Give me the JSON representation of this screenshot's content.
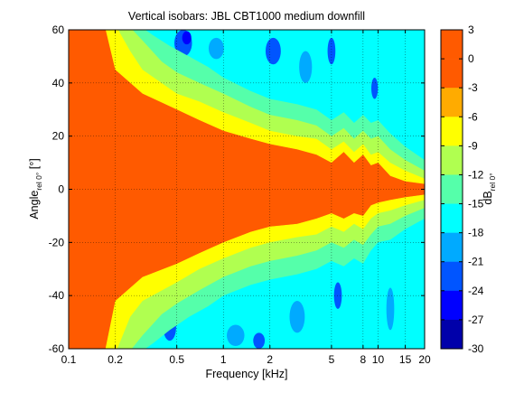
{
  "chart_data": {
    "type": "heatmap",
    "title": "Vertical isobars: JBL  CBT1000  medium downfill",
    "xlabel": "Frequency [kHz]",
    "ylabel": {
      "main": "Angle",
      "sub": "rel 0°",
      "unit": " [°]"
    },
    "colorbar_label": {
      "main": "dB",
      "sub": "rel 0°"
    },
    "x_scale": "log",
    "xlim": [
      0.1,
      20
    ],
    "ylim": [
      -60,
      60
    ],
    "x_ticks": [
      {
        "value": 0.1,
        "label": "0.1"
      },
      {
        "value": 0.2,
        "label": "0.2"
      },
      {
        "value": 0.5,
        "label": "0.5"
      },
      {
        "value": 1,
        "label": "1"
      },
      {
        "value": 2,
        "label": "2"
      },
      {
        "value": 5,
        "label": "5"
      },
      {
        "value": 8,
        "label": "8"
      },
      {
        "value": 10,
        "label": "10"
      },
      {
        "value": 15,
        "label": "15"
      },
      {
        "value": 20,
        "label": "20"
      }
    ],
    "y_ticks": [
      {
        "value": 60,
        "label": "60"
      },
      {
        "value": 40,
        "label": "40"
      },
      {
        "value": 20,
        "label": "20"
      },
      {
        "value": 0,
        "label": "0"
      },
      {
        "value": -20,
        "label": "-20"
      },
      {
        "value": -40,
        "label": "-40"
      },
      {
        "value": -60,
        "label": "-60"
      }
    ],
    "grid": true,
    "colorbar": {
      "range": [
        -30,
        3
      ],
      "ticks": [
        {
          "value": 3,
          "label": "3"
        },
        {
          "value": 0,
          "label": "0"
        },
        {
          "value": -3,
          "label": "-3"
        },
        {
          "value": -6,
          "label": "-6"
        },
        {
          "value": -9,
          "label": "-9"
        },
        {
          "value": -12,
          "label": "-12"
        },
        {
          "value": -15,
          "label": "-15"
        },
        {
          "value": -18,
          "label": "-18"
        },
        {
          "value": -21,
          "label": "-21"
        },
        {
          "value": -24,
          "label": "-24"
        },
        {
          "value": -27,
          "label": "-27"
        },
        {
          "value": -30,
          "label": "-30"
        }
      ],
      "bands": [
        {
          "from": 0,
          "to": 3,
          "color": "#ff5a00"
        },
        {
          "from": -3,
          "to": 0,
          "color": "#ff5a00"
        },
        {
          "from": -6,
          "to": -3,
          "color": "#ffab00"
        },
        {
          "from": -9,
          "to": -6,
          "color": "#ffff00"
        },
        {
          "from": -12,
          "to": -9,
          "color": "#b0ff50"
        },
        {
          "from": -15,
          "to": -12,
          "color": "#55ffaa"
        },
        {
          "from": -18,
          "to": -15,
          "color": "#00ffff"
        },
        {
          "from": -21,
          "to": -18,
          "color": "#00aaff"
        },
        {
          "from": -24,
          "to": -21,
          "color": "#0055ff"
        },
        {
          "from": -27,
          "to": -24,
          "color": "#0000ff"
        },
        {
          "from": -30,
          "to": -27,
          "color": "#0000aa"
        }
      ]
    },
    "contours": [
      {
        "level": -3,
        "color": "#ffab00",
        "upper": [
          [
            0.1,
            62
          ],
          [
            0.17,
            62
          ],
          [
            0.2,
            45
          ],
          [
            0.3,
            36
          ],
          [
            0.5,
            30
          ],
          [
            0.7,
            26
          ],
          [
            1,
            22
          ],
          [
            1.5,
            19
          ],
          [
            2,
            17
          ],
          [
            3,
            15
          ],
          [
            4,
            13
          ],
          [
            5,
            10
          ],
          [
            6,
            14
          ],
          [
            7,
            10
          ],
          [
            8,
            13
          ],
          [
            9,
            9
          ],
          [
            10,
            10
          ],
          [
            12,
            5
          ],
          [
            15,
            3
          ],
          [
            20,
            2
          ]
        ],
        "lower": [
          [
            0.1,
            -62
          ],
          [
            0.17,
            -62
          ],
          [
            0.2,
            -42
          ],
          [
            0.3,
            -33
          ],
          [
            0.5,
            -28
          ],
          [
            0.7,
            -24
          ],
          [
            1,
            -20
          ],
          [
            1.5,
            -16
          ],
          [
            2,
            -14
          ],
          [
            3,
            -13
          ],
          [
            4,
            -11
          ],
          [
            5,
            -9
          ],
          [
            6,
            -11
          ],
          [
            7,
            -9
          ],
          [
            8,
            -10
          ],
          [
            9,
            -6
          ],
          [
            10,
            -5
          ],
          [
            12,
            -4
          ],
          [
            15,
            -3
          ],
          [
            20,
            -2
          ]
        ]
      },
      {
        "level": -6,
        "color": "#ffff00",
        "upper": [
          [
            0.1,
            62
          ],
          [
            0.2,
            62
          ],
          [
            0.25,
            52
          ],
          [
            0.3,
            45
          ],
          [
            0.5,
            36
          ],
          [
            0.7,
            33
          ],
          [
            1,
            29
          ],
          [
            1.5,
            25
          ],
          [
            2,
            22
          ],
          [
            3,
            20
          ],
          [
            4,
            19
          ],
          [
            5,
            15
          ],
          [
            6,
            18
          ],
          [
            7,
            14
          ],
          [
            8,
            17
          ],
          [
            9,
            13
          ],
          [
            10,
            14
          ],
          [
            12,
            10
          ],
          [
            15,
            7
          ],
          [
            20,
            4
          ]
        ],
        "lower": [
          [
            0.1,
            -62
          ],
          [
            0.2,
            -62
          ],
          [
            0.25,
            -48
          ],
          [
            0.3,
            -42
          ],
          [
            0.5,
            -35
          ],
          [
            0.7,
            -30
          ],
          [
            1,
            -26
          ],
          [
            1.5,
            -22
          ],
          [
            2,
            -20
          ],
          [
            3,
            -18
          ],
          [
            4,
            -17
          ],
          [
            5,
            -14
          ],
          [
            6,
            -16
          ],
          [
            7,
            -13
          ],
          [
            8,
            -15
          ],
          [
            9,
            -11
          ],
          [
            10,
            -9
          ],
          [
            12,
            -8
          ],
          [
            15,
            -6
          ],
          [
            20,
            -4
          ]
        ]
      },
      {
        "level": -9,
        "color": "#b0ff50",
        "upper": [
          [
            0.1,
            62
          ],
          [
            0.24,
            62
          ],
          [
            0.3,
            56
          ],
          [
            0.4,
            48
          ],
          [
            0.5,
            44
          ],
          [
            0.7,
            40
          ],
          [
            1,
            36
          ],
          [
            1.5,
            31
          ],
          [
            2,
            28
          ],
          [
            3,
            26
          ],
          [
            4,
            24
          ],
          [
            5,
            20
          ],
          [
            6,
            23
          ],
          [
            7,
            19
          ],
          [
            8,
            22
          ],
          [
            9,
            19
          ],
          [
            10,
            20
          ],
          [
            12,
            15
          ],
          [
            15,
            11
          ],
          [
            20,
            7
          ]
        ],
        "lower": [
          [
            0.1,
            -62
          ],
          [
            0.24,
            -62
          ],
          [
            0.3,
            -55
          ],
          [
            0.4,
            -47
          ],
          [
            0.5,
            -43
          ],
          [
            0.7,
            -38
          ],
          [
            1,
            -33
          ],
          [
            1.5,
            -29
          ],
          [
            2,
            -27
          ],
          [
            3,
            -25
          ],
          [
            4,
            -23
          ],
          [
            5,
            -20
          ],
          [
            6,
            -22
          ],
          [
            7,
            -19
          ],
          [
            8,
            -21
          ],
          [
            9,
            -17
          ],
          [
            10,
            -14
          ],
          [
            12,
            -13
          ],
          [
            15,
            -10
          ],
          [
            20,
            -7
          ]
        ]
      },
      {
        "level": -12,
        "color": "#55ffaa",
        "upper": [
          [
            0.1,
            62
          ],
          [
            0.28,
            62
          ],
          [
            0.35,
            58
          ],
          [
            0.45,
            54
          ],
          [
            0.6,
            50
          ],
          [
            0.8,
            46
          ],
          [
            1,
            42
          ],
          [
            1.5,
            37
          ],
          [
            2,
            34
          ],
          [
            3,
            32
          ],
          [
            4,
            30
          ],
          [
            5,
            26
          ],
          [
            6,
            29
          ],
          [
            7,
            25
          ],
          [
            8,
            28
          ],
          [
            9,
            25
          ],
          [
            10,
            26
          ],
          [
            12,
            21
          ],
          [
            15,
            16
          ],
          [
            20,
            11
          ]
        ],
        "lower": [
          [
            0.1,
            -62
          ],
          [
            0.28,
            -62
          ],
          [
            0.35,
            -58
          ],
          [
            0.45,
            -53
          ],
          [
            0.6,
            -48
          ],
          [
            0.8,
            -44
          ],
          [
            1,
            -40
          ],
          [
            1.5,
            -36
          ],
          [
            2,
            -34
          ],
          [
            3,
            -32
          ],
          [
            4,
            -30
          ],
          [
            5,
            -27
          ],
          [
            6,
            -29
          ],
          [
            7,
            -26
          ],
          [
            8,
            -28
          ],
          [
            9,
            -23
          ],
          [
            10,
            -20
          ],
          [
            12,
            -19
          ],
          [
            15,
            -15
          ],
          [
            20,
            -11
          ]
        ]
      }
    ],
    "blue_patches": [
      {
        "cx": 0.55,
        "cy": 55,
        "rx": 0.14,
        "ry": 5,
        "color": "#0055ff"
      },
      {
        "cx": 0.58,
        "cy": 57,
        "rx": 0.07,
        "ry": 2.5,
        "color": "#0000ff"
      },
      {
        "cx": 0.9,
        "cy": 53,
        "rx": 0.12,
        "ry": 4,
        "color": "#00aaff"
      },
      {
        "cx": 2.1,
        "cy": 52,
        "rx": 0.12,
        "ry": 5,
        "color": "#0055ff"
      },
      {
        "cx": 3.4,
        "cy": 46,
        "rx": 0.1,
        "ry": 6,
        "color": "#00aaff"
      },
      {
        "cx": 5.0,
        "cy": 52,
        "rx": 0.06,
        "ry": 5,
        "color": "#0055ff"
      },
      {
        "cx": 9.5,
        "cy": 38,
        "rx": 0.05,
        "ry": 4,
        "color": "#0055ff"
      },
      {
        "cx": 0.45,
        "cy": -52,
        "rx": 0.1,
        "ry": 5,
        "color": "#0055ff"
      },
      {
        "cx": 1.2,
        "cy": -55,
        "rx": 0.14,
        "ry": 4,
        "color": "#00aaff"
      },
      {
        "cx": 1.7,
        "cy": -57,
        "rx": 0.09,
        "ry": 3,
        "color": "#0055ff"
      },
      {
        "cx": 3.0,
        "cy": -48,
        "rx": 0.12,
        "ry": 6,
        "color": "#00aaff"
      },
      {
        "cx": 5.5,
        "cy": -40,
        "rx": 0.06,
        "ry": 5,
        "color": "#0055ff"
      },
      {
        "cx": 12,
        "cy": -45,
        "rx": 0.06,
        "ry": 8,
        "color": "#00aaff"
      }
    ]
  }
}
